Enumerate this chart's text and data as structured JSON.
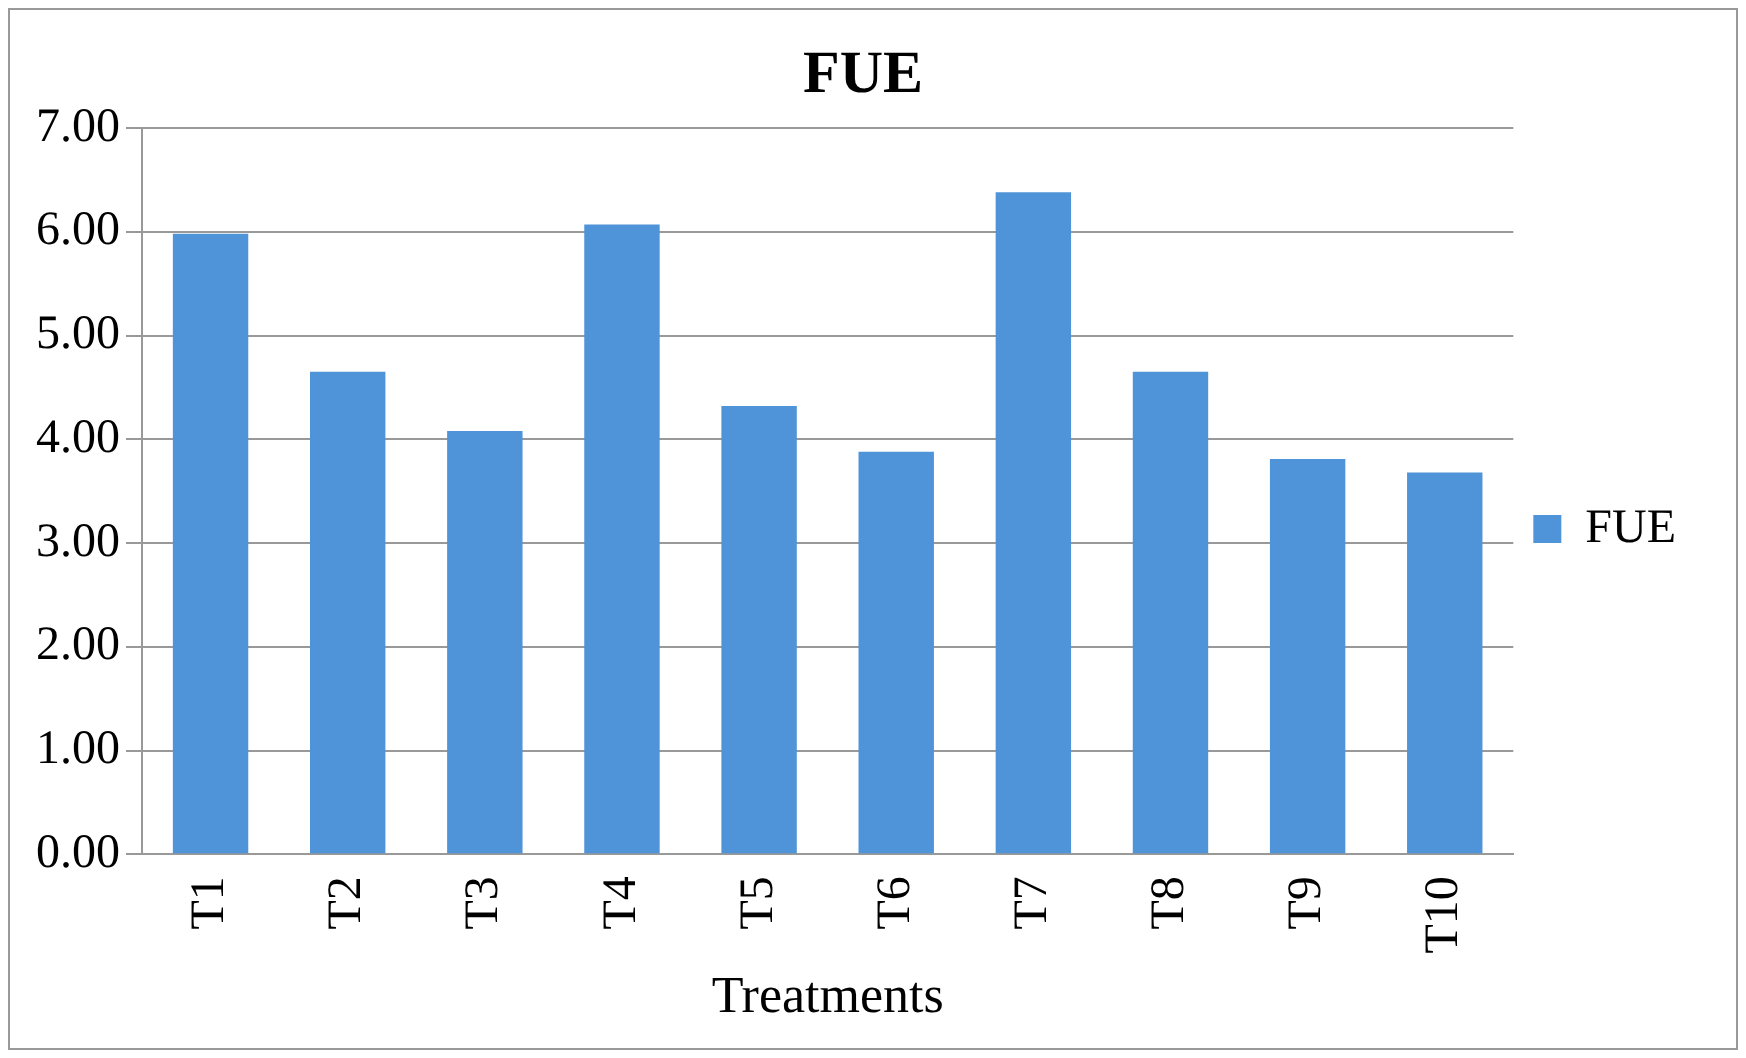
{
  "chart_data": {
    "type": "bar",
    "title": "FUE",
    "xlabel": "Treatments",
    "categories": [
      "T1",
      "T2",
      "T3",
      "T4",
      "T5",
      "T6",
      "T7",
      "T8",
      "T9",
      "T10"
    ],
    "series": [
      {
        "name": "FUE",
        "color": "#4f94d8",
        "values": [
          5.98,
          4.65,
          4.08,
          6.07,
          4.32,
          3.88,
          6.38,
          4.65,
          3.81,
          3.68
        ]
      }
    ],
    "ylim": [
      0,
      7
    ],
    "yticks": [
      {
        "value": 0,
        "label": "0.00"
      },
      {
        "value": 1,
        "label": "1.00"
      },
      {
        "value": 2,
        "label": "2.00"
      },
      {
        "value": 3,
        "label": "3.00"
      },
      {
        "value": 4,
        "label": "4.00"
      },
      {
        "value": 5,
        "label": "5.00"
      },
      {
        "value": 6,
        "label": "6.00"
      },
      {
        "value": 7,
        "label": "7.00"
      }
    ],
    "grid": "y",
    "legend": "right"
  }
}
